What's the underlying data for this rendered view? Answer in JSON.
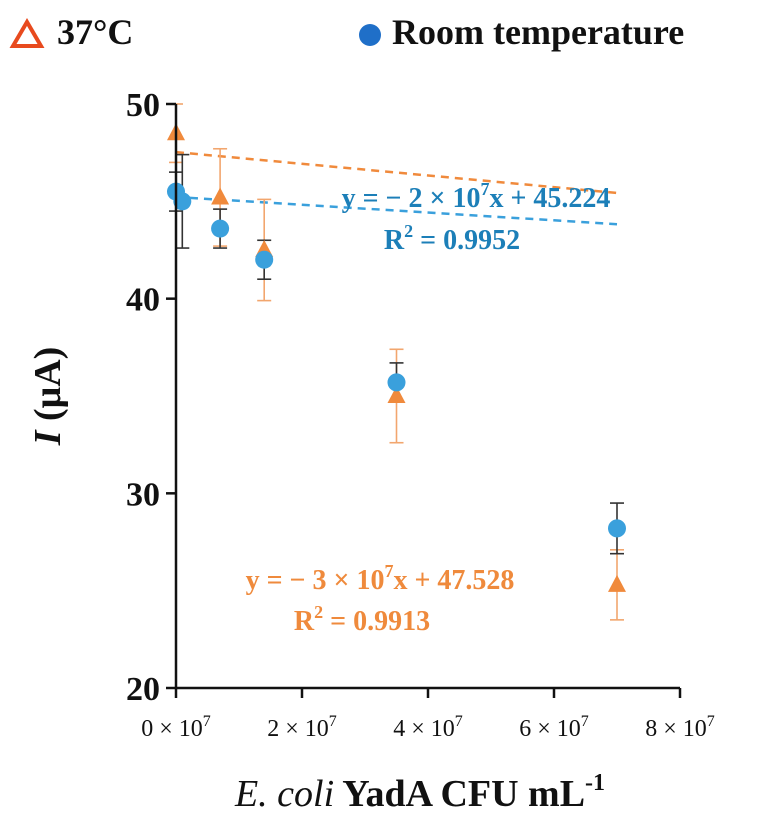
{
  "chart_data": {
    "type": "scatter",
    "xlabel": {
      "italic": "E. coli",
      "rest": " YadA CFU mL",
      "sup": "-1"
    },
    "ylabel": {
      "italic": "I",
      "rest": " (μA)"
    },
    "xlim": [
      0,
      80000000
    ],
    "ylim": [
      20,
      50
    ],
    "x_ticks": [
      {
        "value": 0,
        "mantissa": "0",
        "exp": "7"
      },
      {
        "value": 20000000,
        "mantissa": "2",
        "exp": "7"
      },
      {
        "value": 40000000,
        "mantissa": "4",
        "exp": "7"
      },
      {
        "value": 60000000,
        "mantissa": "6",
        "exp": "7"
      },
      {
        "value": 80000000,
        "mantissa": "8",
        "exp": "7"
      }
    ],
    "y_ticks": [
      {
        "value": 20,
        "label": "20"
      },
      {
        "value": 30,
        "label": "30"
      },
      {
        "value": 40,
        "label": "40"
      },
      {
        "value": 50,
        "label": "50"
      }
    ],
    "grid": false,
    "legend_position": "top",
    "series": [
      {
        "name": "37°C",
        "marker": "triangle",
        "color": "#f08a3c",
        "legend_color": "#e84a1e",
        "points": [
          {
            "x": 0,
            "y": 48.5,
            "err": 1.5
          },
          {
            "x": 7000000,
            "y": 45.2,
            "err": 2.5
          },
          {
            "x": 14000000,
            "y": 42.5,
            "err": 2.6
          },
          {
            "x": 35000000,
            "y": 35.0,
            "err": 2.4
          },
          {
            "x": 70000000,
            "y": 25.3,
            "err": 1.8
          }
        ],
        "trend": {
          "slope": -30000000,
          "intercept": 47.528
        },
        "equation": {
          "prefix": "y = − 3 × 10",
          "exp": "7",
          "suffix": "x + 47.528"
        },
        "r2": {
          "label": "R",
          "exp": "2",
          "value": " = 0.9913"
        }
      },
      {
        "name": "Room temperature",
        "marker": "circle",
        "color": "#3aa0dc",
        "legend_color": "#1f6fc8",
        "points": [
          {
            "x": 0,
            "y": 45.5,
            "err": 1.0
          },
          {
            "x": 1000000,
            "y": 45.0,
            "err": 2.4
          },
          {
            "x": 7000000,
            "y": 43.6,
            "err": 1.0
          },
          {
            "x": 14000000,
            "y": 42.0,
            "err": 1.0
          },
          {
            "x": 35000000,
            "y": 35.7,
            "err": 1.0
          },
          {
            "x": 70000000,
            "y": 28.2,
            "err": 1.3
          }
        ],
        "trend": {
          "slope": -20000000,
          "intercept": 45.224
        },
        "equation": {
          "prefix": "y = − 2 × 10",
          "exp": "7",
          "suffix": "x + 45.224"
        },
        "r2": {
          "label": "R",
          "exp": "2",
          "value": " = 0.9952"
        }
      }
    ]
  }
}
